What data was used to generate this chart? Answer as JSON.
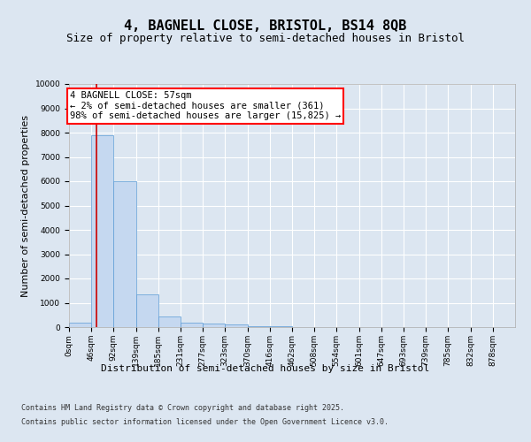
{
  "title_line1": "4, BAGNELL CLOSE, BRISTOL, BS14 8QB",
  "title_line2": "Size of property relative to semi-detached houses in Bristol",
  "xlabel": "Distribution of semi-detached houses by size in Bristol",
  "ylabel": "Number of semi-detached properties",
  "footer_line1": "Contains HM Land Registry data © Crown copyright and database right 2025.",
  "footer_line2": "Contains public sector information licensed under the Open Government Licence v3.0.",
  "annotation_title": "4 BAGNELL CLOSE: 57sqm",
  "annotation_line1": "← 2% of semi-detached houses are smaller (361)",
  "annotation_line2": "98% of semi-detached houses are larger (15,825) →",
  "property_size": 57,
  "bar_edges": [
    0,
    46,
    92,
    139,
    185,
    231,
    277,
    323,
    370,
    416,
    462,
    508,
    554,
    601,
    647,
    693,
    739,
    785,
    832,
    878,
    924
  ],
  "bar_heights": [
    200,
    7900,
    6000,
    1350,
    450,
    200,
    150,
    100,
    50,
    20,
    10,
    8,
    5,
    3,
    2,
    2,
    1,
    1,
    1,
    1
  ],
  "bar_color": "#c5d8f0",
  "bar_edge_color": "#5b9bd5",
  "vline_color": "#cc0000",
  "ylim": [
    0,
    10000
  ],
  "yticks": [
    0,
    1000,
    2000,
    3000,
    4000,
    5000,
    6000,
    7000,
    8000,
    9000,
    10000
  ],
  "background_color": "#dce6f1",
  "plot_bg_color": "#dce6f1",
  "grid_color": "#ffffff",
  "title_fontsize": 11,
  "subtitle_fontsize": 9,
  "tick_label_fontsize": 6.5,
  "axis_label_fontsize": 8,
  "annotation_fontsize": 7.5,
  "footer_fontsize": 6
}
